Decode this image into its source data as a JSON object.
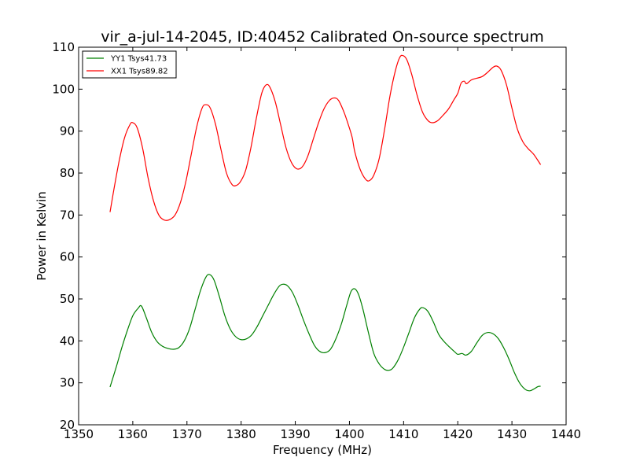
{
  "chart_data": {
    "type": "line",
    "title": "vir_a-jul-14-2045, ID:40452 Calibrated On-source spectrum",
    "xlabel": "Frequency (MHz)",
    "ylabel": "Power in Kelvin",
    "xlim": [
      1350,
      1440
    ],
    "ylim": [
      20,
      110
    ],
    "xticks": [
      "1350",
      "1360",
      "1370",
      "1380",
      "1390",
      "1400",
      "1410",
      "1420",
      "1430",
      "1440"
    ],
    "yticks": [
      "20",
      "30",
      "40",
      "50",
      "60",
      "70",
      "80",
      "90",
      "100",
      "110"
    ],
    "grid": false,
    "legend_position": "top-left",
    "series": [
      {
        "name": "YY1 Tsys41.73",
        "color": "#008000",
        "points": [
          [
            1355.8,
            29.0
          ],
          [
            1357.0,
            34.0
          ],
          [
            1358.0,
            38.5
          ],
          [
            1359.0,
            42.5
          ],
          [
            1360.0,
            46.0
          ],
          [
            1361.0,
            47.8
          ],
          [
            1361.6,
            48.3
          ],
          [
            1362.5,
            45.5
          ],
          [
            1363.5,
            42.0
          ],
          [
            1364.5,
            39.8
          ],
          [
            1365.5,
            38.7
          ],
          [
            1366.5,
            38.2
          ],
          [
            1367.5,
            38.0
          ],
          [
            1368.5,
            38.4
          ],
          [
            1369.5,
            40.0
          ],
          [
            1370.5,
            43.0
          ],
          [
            1371.5,
            47.5
          ],
          [
            1372.5,
            52.0
          ],
          [
            1373.5,
            55.2
          ],
          [
            1374.2,
            55.8
          ],
          [
            1375.0,
            54.5
          ],
          [
            1376.0,
            50.5
          ],
          [
            1377.0,
            46.0
          ],
          [
            1378.0,
            42.8
          ],
          [
            1379.0,
            41.0
          ],
          [
            1380.0,
            40.3
          ],
          [
            1381.0,
            40.5
          ],
          [
            1382.0,
            41.5
          ],
          [
            1383.0,
            43.5
          ],
          [
            1384.0,
            46.0
          ],
          [
            1385.0,
            48.5
          ],
          [
            1386.0,
            51.0
          ],
          [
            1387.0,
            53.0
          ],
          [
            1387.7,
            53.5
          ],
          [
            1388.5,
            53.2
          ],
          [
            1389.5,
            51.5
          ],
          [
            1390.5,
            48.5
          ],
          [
            1391.5,
            45.0
          ],
          [
            1392.5,
            41.8
          ],
          [
            1393.5,
            39.0
          ],
          [
            1394.5,
            37.5
          ],
          [
            1395.5,
            37.2
          ],
          [
            1396.5,
            38.0
          ],
          [
            1397.5,
            40.5
          ],
          [
            1398.5,
            44.0
          ],
          [
            1399.5,
            48.5
          ],
          [
            1400.3,
            51.8
          ],
          [
            1401.0,
            52.4
          ],
          [
            1401.7,
            51.0
          ],
          [
            1402.5,
            47.5
          ],
          [
            1403.5,
            42.0
          ],
          [
            1404.5,
            37.0
          ],
          [
            1405.5,
            34.5
          ],
          [
            1406.5,
            33.2
          ],
          [
            1407.3,
            33.0
          ],
          [
            1408.0,
            33.5
          ],
          [
            1409.0,
            35.5
          ],
          [
            1410.0,
            38.5
          ],
          [
            1411.0,
            42.0
          ],
          [
            1412.0,
            45.5
          ],
          [
            1413.0,
            47.6
          ],
          [
            1413.6,
            47.9
          ],
          [
            1414.5,
            47.0
          ],
          [
            1415.5,
            44.5
          ],
          [
            1416.5,
            41.5
          ],
          [
            1417.5,
            39.8
          ],
          [
            1418.5,
            38.5
          ],
          [
            1419.5,
            37.3
          ],
          [
            1420.0,
            36.8
          ],
          [
            1420.8,
            37.0
          ],
          [
            1421.5,
            36.6
          ],
          [
            1422.5,
            37.5
          ],
          [
            1423.5,
            39.5
          ],
          [
            1424.5,
            41.3
          ],
          [
            1425.5,
            42.0
          ],
          [
            1426.5,
            41.7
          ],
          [
            1427.5,
            40.5
          ],
          [
            1428.5,
            38.3
          ],
          [
            1429.5,
            35.5
          ],
          [
            1430.5,
            32.3
          ],
          [
            1431.5,
            29.8
          ],
          [
            1432.5,
            28.4
          ],
          [
            1433.3,
            28.1
          ],
          [
            1434.0,
            28.5
          ],
          [
            1434.8,
            29.1
          ],
          [
            1435.3,
            29.2
          ]
        ]
      },
      {
        "name": "XX1 Tsys89.82",
        "color": "#ff0000",
        "points": [
          [
            1355.8,
            70.7
          ],
          [
            1356.5,
            76.0
          ],
          [
            1357.5,
            83.0
          ],
          [
            1358.5,
            88.5
          ],
          [
            1359.5,
            91.6
          ],
          [
            1360.0,
            92.0
          ],
          [
            1360.8,
            90.8
          ],
          [
            1361.8,
            86.0
          ],
          [
            1362.8,
            79.0
          ],
          [
            1363.8,
            73.5
          ],
          [
            1364.8,
            70.0
          ],
          [
            1365.8,
            68.8
          ],
          [
            1366.8,
            68.9
          ],
          [
            1367.8,
            70.0
          ],
          [
            1368.8,
            73.0
          ],
          [
            1369.8,
            78.0
          ],
          [
            1370.8,
            84.5
          ],
          [
            1371.8,
            91.0
          ],
          [
            1372.8,
            95.5
          ],
          [
            1373.5,
            96.3
          ],
          [
            1374.3,
            95.5
          ],
          [
            1375.3,
            91.5
          ],
          [
            1376.3,
            85.5
          ],
          [
            1377.3,
            80.0
          ],
          [
            1378.3,
            77.3
          ],
          [
            1379.0,
            77.0
          ],
          [
            1379.8,
            77.8
          ],
          [
            1380.8,
            80.5
          ],
          [
            1381.8,
            86.0
          ],
          [
            1382.8,
            93.0
          ],
          [
            1383.8,
            99.0
          ],
          [
            1384.6,
            101.0
          ],
          [
            1385.3,
            100.5
          ],
          [
            1386.3,
            97.0
          ],
          [
            1387.3,
            91.5
          ],
          [
            1388.3,
            86.0
          ],
          [
            1389.3,
            82.5
          ],
          [
            1390.3,
            81.0
          ],
          [
            1391.3,
            81.5
          ],
          [
            1392.3,
            84.0
          ],
          [
            1393.3,
            88.0
          ],
          [
            1394.3,
            92.0
          ],
          [
            1395.3,
            95.3
          ],
          [
            1396.3,
            97.3
          ],
          [
            1397.2,
            97.9
          ],
          [
            1398.0,
            97.3
          ],
          [
            1399.0,
            94.5
          ],
          [
            1399.8,
            91.5
          ],
          [
            1400.5,
            88.5
          ],
          [
            1401.0,
            85.0
          ],
          [
            1402.0,
            80.8
          ],
          [
            1403.0,
            78.5
          ],
          [
            1403.7,
            78.2
          ],
          [
            1404.5,
            79.5
          ],
          [
            1405.5,
            83.5
          ],
          [
            1406.5,
            90.5
          ],
          [
            1407.5,
            98.5
          ],
          [
            1408.5,
            104.5
          ],
          [
            1409.3,
            107.6
          ],
          [
            1409.9,
            108.0
          ],
          [
            1410.6,
            107.0
          ],
          [
            1411.5,
            103.5
          ],
          [
            1412.5,
            98.5
          ],
          [
            1413.5,
            94.5
          ],
          [
            1414.5,
            92.5
          ],
          [
            1415.3,
            92.0
          ],
          [
            1416.3,
            92.5
          ],
          [
            1417.3,
            93.8
          ],
          [
            1418.3,
            95.3
          ],
          [
            1419.3,
            97.5
          ],
          [
            1420.0,
            99.0
          ],
          [
            1420.6,
            101.4
          ],
          [
            1421.2,
            101.9
          ],
          [
            1421.6,
            101.3
          ],
          [
            1422.5,
            102.2
          ],
          [
            1423.5,
            102.6
          ],
          [
            1424.5,
            103.0
          ],
          [
            1425.5,
            104.0
          ],
          [
            1426.5,
            105.2
          ],
          [
            1427.2,
            105.5
          ],
          [
            1428.0,
            104.5
          ],
          [
            1429.0,
            101.0
          ],
          [
            1430.0,
            95.5
          ],
          [
            1431.0,
            90.5
          ],
          [
            1432.0,
            87.5
          ],
          [
            1433.0,
            85.8
          ],
          [
            1434.0,
            84.5
          ],
          [
            1435.3,
            82.0
          ]
        ]
      }
    ]
  }
}
